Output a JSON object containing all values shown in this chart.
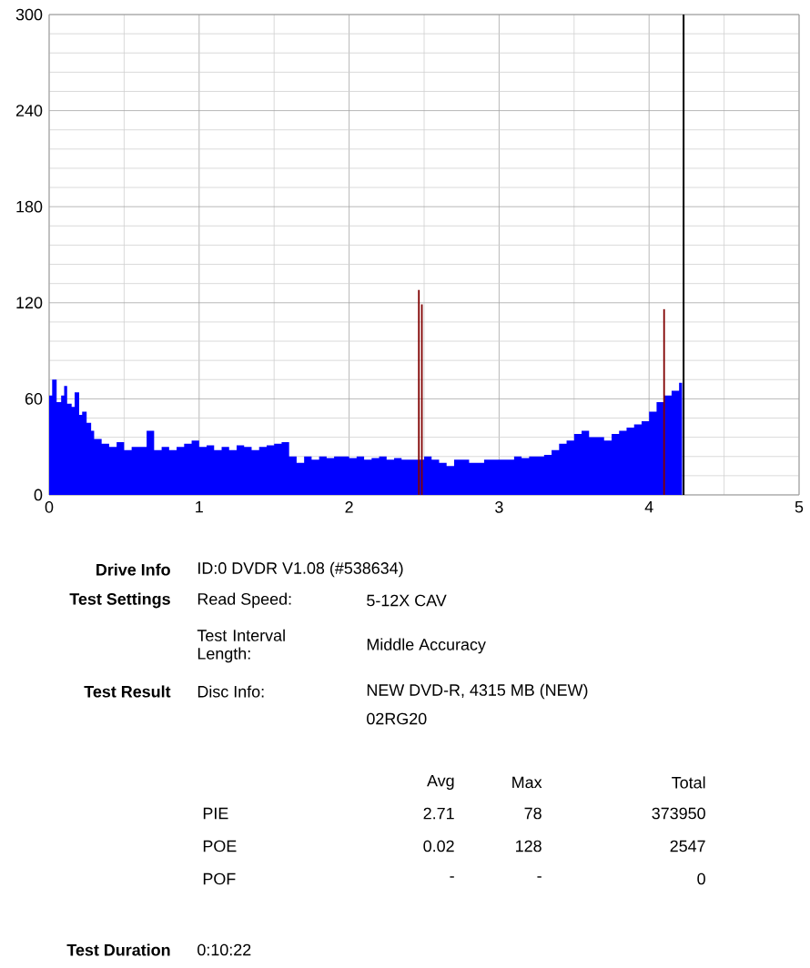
{
  "chart_data": {
    "type": "area",
    "xlim": [
      0,
      5
    ],
    "ylim": [
      0,
      300
    ],
    "xticks": [
      0,
      1,
      2,
      3,
      4,
      5
    ],
    "yticks": [
      0,
      60,
      120,
      180,
      240,
      300
    ],
    "grid": true,
    "series": [
      {
        "color": "#0000ff",
        "x": [
          0,
          0.02,
          0.05,
          0.08,
          0.1,
          0.12,
          0.15,
          0.17,
          0.2,
          0.22,
          0.25,
          0.28,
          0.3,
          0.35,
          0.4,
          0.45,
          0.5,
          0.55,
          0.6,
          0.65,
          0.7,
          0.75,
          0.8,
          0.85,
          0.9,
          0.95,
          1.0,
          1.05,
          1.1,
          1.15,
          1.2,
          1.25,
          1.3,
          1.35,
          1.4,
          1.45,
          1.5,
          1.55,
          1.6,
          1.65,
          1.7,
          1.75,
          1.8,
          1.85,
          1.9,
          1.95,
          2.0,
          2.05,
          2.1,
          2.15,
          2.2,
          2.25,
          2.3,
          2.35,
          2.4,
          2.45,
          2.5,
          2.55,
          2.6,
          2.65,
          2.7,
          2.75,
          2.8,
          2.85,
          2.9,
          2.95,
          3.0,
          3.05,
          3.1,
          3.15,
          3.2,
          3.25,
          3.3,
          3.35,
          3.4,
          3.45,
          3.5,
          3.55,
          3.6,
          3.65,
          3.7,
          3.75,
          3.8,
          3.85,
          3.9,
          3.95,
          4.0,
          4.05,
          4.1,
          4.15,
          4.2,
          4.22
        ],
        "values": [
          62,
          72,
          58,
          62,
          68,
          57,
          55,
          64,
          50,
          52,
          45,
          40,
          35,
          32,
          30,
          33,
          28,
          30,
          30,
          40,
          28,
          30,
          28,
          30,
          32,
          34,
          30,
          31,
          28,
          30,
          28,
          31,
          30,
          28,
          30,
          31,
          32,
          33,
          24,
          20,
          24,
          22,
          24,
          23,
          24,
          24,
          23,
          24,
          22,
          23,
          24,
          22,
          23,
          22,
          22,
          22,
          24,
          22,
          20,
          18,
          22,
          22,
          20,
          20,
          22,
          22,
          22,
          22,
          24,
          23,
          24,
          24,
          25,
          28,
          32,
          34,
          38,
          40,
          36,
          36,
          34,
          38,
          40,
          42,
          44,
          46,
          52,
          58,
          62,
          65,
          70,
          72
        ]
      },
      {
        "type": "bar",
        "color": "#800000",
        "x": [
          2.465,
          2.485,
          4.1
        ],
        "values": [
          128,
          119,
          116
        ]
      }
    ],
    "ref_lines": [
      {
        "axis": "x",
        "value": 4.23,
        "color": "#000000"
      }
    ],
    "annotations": [
      "Drive Info",
      "ID:0 DVDR V1.08 (#538634)",
      "Test Settings",
      "Read Speed:",
      "5-12X CAV",
      "Test Interval Length:",
      "Middle Accuracy",
      "Test Result",
      "Disc Info:",
      "NEW DVD-R, 4315 MB (NEW)",
      "02RG20",
      "Avg",
      "Max",
      "Total",
      "PIE",
      "2.71",
      "78",
      "373950",
      "POE",
      "0.02",
      "128",
      "2547",
      "POF",
      "-",
      "-",
      "0",
      "Test Duration",
      "0:10:22"
    ]
  }
}
